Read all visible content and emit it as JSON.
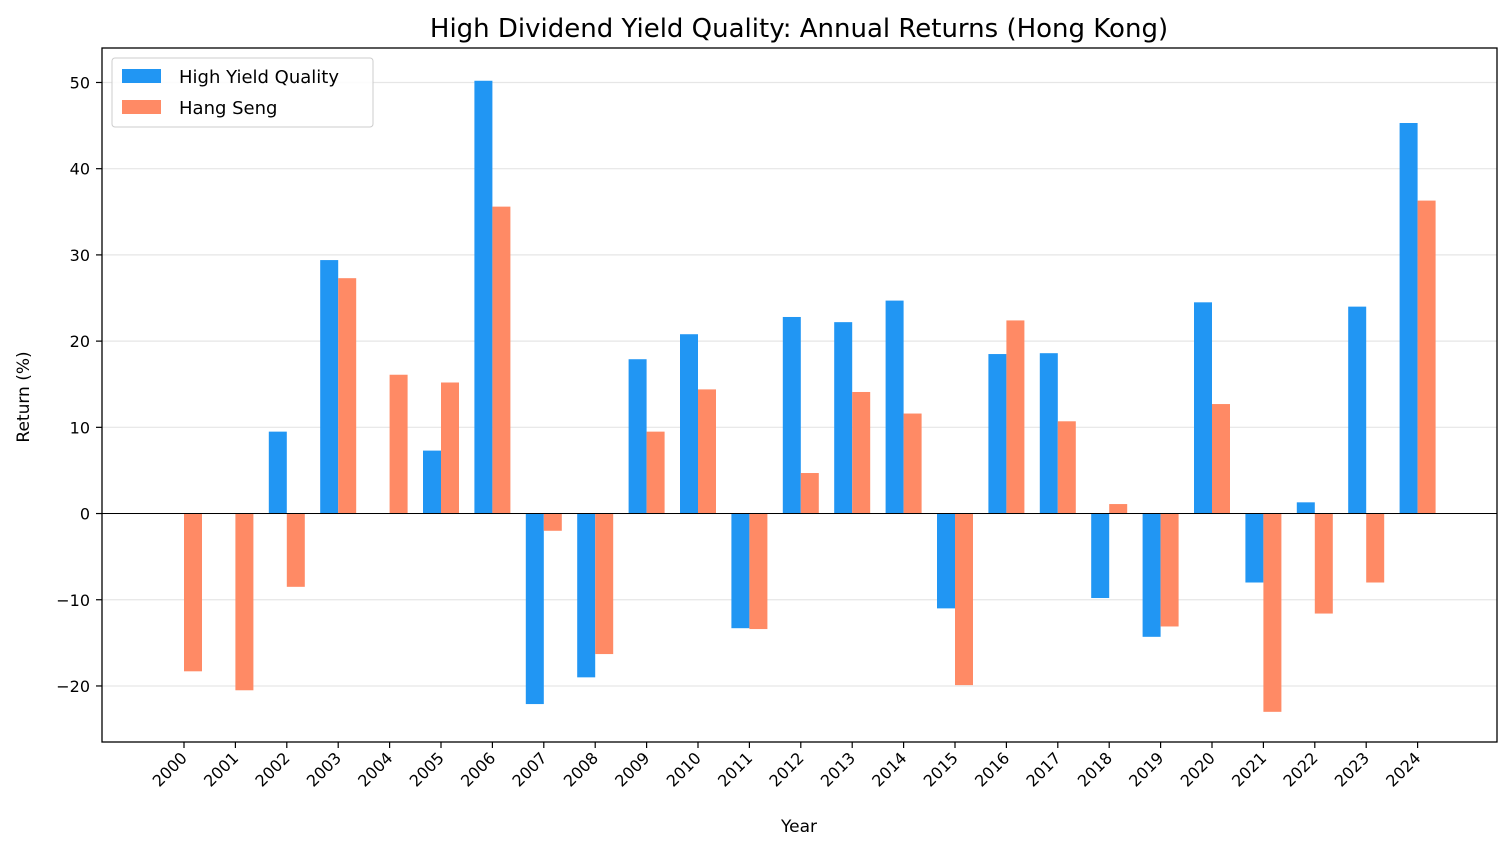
{
  "chart_data": {
    "type": "bar",
    "title": "High Dividend Yield Quality: Annual Returns (Hong Kong)",
    "xlabel": "Year",
    "ylabel": "Return (%)",
    "ylim": [
      -26.5,
      54
    ],
    "yticks": [
      -20,
      -10,
      0,
      10,
      20,
      30,
      40,
      50
    ],
    "ytick_labels": [
      "−20",
      "−10",
      "0",
      "10",
      "20",
      "30",
      "40",
      "50"
    ],
    "grid": "horizontal",
    "legend_position": "top-left",
    "categories": [
      "2000",
      "2001",
      "2002",
      "2003",
      "2004",
      "2005",
      "2006",
      "2007",
      "2008",
      "2009",
      "2010",
      "2011",
      "2012",
      "2013",
      "2014",
      "2015",
      "2016",
      "2017",
      "2018",
      "2019",
      "2020",
      "2021",
      "2022",
      "2023",
      "2024"
    ],
    "series": [
      {
        "name": "High Yield Quality",
        "color": "#2196F3",
        "values": [
          null,
          null,
          9.5,
          29.4,
          null,
          7.3,
          50.2,
          -22.1,
          -19.0,
          17.9,
          20.8,
          -13.3,
          22.8,
          22.2,
          24.7,
          -11.0,
          18.5,
          18.6,
          -9.8,
          -14.3,
          24.5,
          -8.0,
          1.3,
          24.0,
          45.3
        ]
      },
      {
        "name": "Hang Seng",
        "color": "#FF8A65",
        "values": [
          -18.3,
          -20.5,
          -8.5,
          27.3,
          16.1,
          15.2,
          35.6,
          -2.0,
          -16.3,
          9.5,
          14.4,
          -13.4,
          4.7,
          14.1,
          11.6,
          -19.9,
          22.4,
          10.7,
          1.1,
          -13.1,
          12.7,
          -23.0,
          -11.6,
          -8.0,
          36.3
        ]
      }
    ]
  }
}
